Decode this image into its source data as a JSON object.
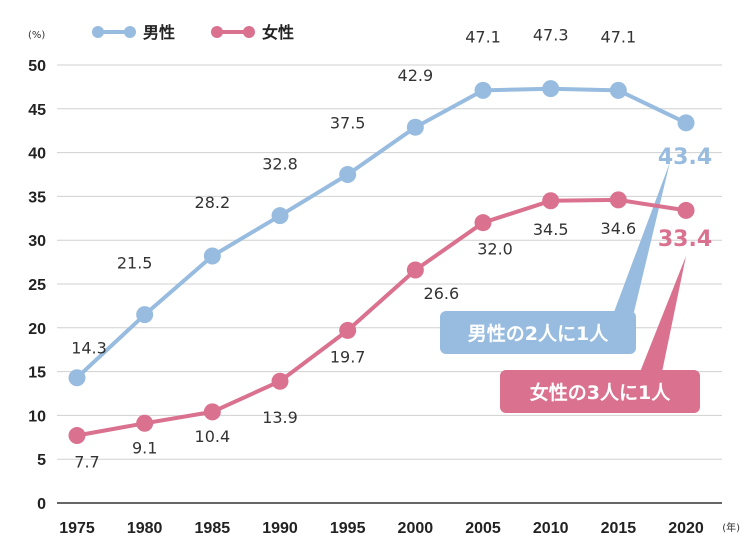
{
  "chart_data": {
    "type": "line",
    "y_unit": "(%)",
    "x_unit": "(年)",
    "ylim": [
      0,
      50
    ],
    "yticks": [
      "0",
      "5",
      "10",
      "15",
      "20",
      "25",
      "30",
      "35",
      "40",
      "45",
      "50"
    ],
    "categories": [
      "1975",
      "1980",
      "1985",
      "1990",
      "1995",
      "2000",
      "2005",
      "2010",
      "2015",
      "2020"
    ],
    "grid": true,
    "legend_position": "top-left",
    "series": [
      {
        "name": "男性",
        "color": "#98bcdf",
        "values": [
          14.3,
          21.5,
          28.2,
          32.8,
          37.5,
          42.9,
          47.1,
          47.3,
          47.1,
          43.4
        ],
        "labels": [
          "14.3",
          "21.5",
          "28.2",
          "32.8",
          "37.5",
          "42.9",
          "47.1",
          "47.3",
          "47.1",
          "43.4"
        ]
      },
      {
        "name": "女性",
        "color": "#d9718f",
        "values": [
          7.7,
          9.1,
          10.4,
          13.9,
          19.7,
          26.6,
          32.0,
          34.5,
          34.6,
          33.4
        ],
        "labels": [
          "7.7",
          "9.1",
          "10.4",
          "13.9",
          "19.7",
          "26.6",
          "32.0",
          "34.5",
          "34.6",
          "33.4"
        ]
      }
    ],
    "annotations": [
      {
        "text": "男性の2人に1人",
        "series": "男性",
        "color": "#98bcdf"
      },
      {
        "text": "女性の3人に1人",
        "series": "女性",
        "color": "#d9718f"
      }
    ]
  }
}
